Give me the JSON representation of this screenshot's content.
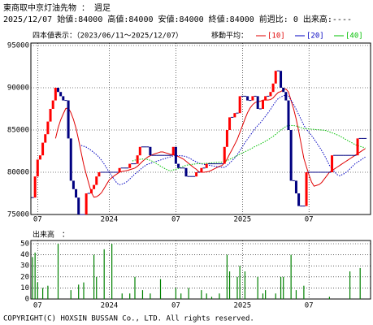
{
  "chart_data": {
    "type": "candlestick",
    "title": "東商取中京灯油先物 ： 週足",
    "summary": "2025/12/07 始値:84000 高値:84000 安値:84000 終値:84000 前週比: 0 出来高:----",
    "range_label": "四本値表示：（2023/06/11～2025/12/07）",
    "ma_label": "移動平均：",
    "ma": [
      {
        "name": "[10]",
        "period": 10,
        "color": "#e00000"
      },
      {
        "name": "[20]",
        "period": 20,
        "color": "#0000c0"
      },
      {
        "name": "[40]",
        "period": 40,
        "color": "#00c000"
      }
    ],
    "up_color": "#ff0000",
    "down_color": "#000080",
    "close": [
      77000,
      79500,
      81500,
      82000,
      83500,
      84500,
      86000,
      87500,
      88500,
      90000,
      89500,
      89000,
      88500,
      88500,
      84000,
      79000,
      78000,
      77000,
      75000,
      75000,
      75000,
      77500,
      77500,
      78000,
      78500,
      79500,
      80000,
      80000,
      80000,
      80000,
      80000,
      80000,
      80000,
      80000,
      80500,
      80500,
      80500,
      80500,
      81000,
      81000,
      81000,
      82000,
      83000,
      83000,
      83000,
      83000,
      82000,
      82000,
      82000,
      82000,
      82000,
      82000,
      82000,
      82000,
      82000,
      83000,
      81000,
      80500,
      80500,
      80500,
      79500,
      79500,
      79500,
      79500,
      80000,
      80000,
      80500,
      80500,
      81000,
      81000,
      81000,
      81000,
      81000,
      81000,
      81000,
      83000,
      85000,
      86500,
      86500,
      87000,
      87000,
      89000,
      89000,
      89000,
      88500,
      88500,
      89000,
      89000,
      87500,
      87500,
      88500,
      89000,
      89000,
      89500,
      90500,
      92000,
      92000,
      90000,
      89500,
      88500,
      85000,
      79000,
      79000,
      77500,
      76000,
      76000,
      76000,
      80000,
      80000,
      80000,
      80000,
      80000,
      80000,
      80000,
      80000,
      80000,
      80000,
      82000,
      82000,
      82000,
      82000,
      82000,
      82000,
      82000,
      82000,
      82000,
      82000,
      84000,
      84000,
      84000,
      84000
    ],
    "volume_label": "出来高　：",
    "volume": [
      38,
      42,
      15,
      0,
      10,
      0,
      12,
      0,
      0,
      0,
      50,
      0,
      0,
      0,
      0,
      8,
      0,
      0,
      13,
      0,
      15,
      0,
      0,
      0,
      40,
      20,
      0,
      0,
      45,
      0,
      0,
      50,
      0,
      0,
      0,
      5,
      0,
      0,
      5,
      0,
      20,
      0,
      0,
      8,
      0,
      0,
      5,
      0,
      0,
      0,
      18,
      0,
      0,
      0,
      0,
      0,
      10,
      0,
      5,
      0,
      0,
      10,
      0,
      0,
      0,
      0,
      8,
      0,
      5,
      0,
      2,
      0,
      0,
      5,
      0,
      0,
      40,
      25,
      0,
      0,
      20,
      30,
      0,
      25,
      0,
      0,
      0,
      0,
      20,
      0,
      5,
      8,
      0,
      0,
      0,
      5,
      0,
      20,
      20,
      0,
      0,
      40,
      0,
      8,
      0,
      0,
      12,
      0,
      0,
      0,
      0,
      0,
      0,
      0,
      0,
      0,
      2,
      0,
      0,
      0,
      0,
      0,
      0,
      0,
      25,
      0,
      0,
      0,
      28,
      0,
      0
    ],
    "ylim": [
      75000,
      95000
    ],
    "yticks": [
      75000,
      80000,
      85000,
      90000,
      95000
    ],
    "vlim": [
      0,
      50
    ],
    "vticks": [
      0,
      10,
      20,
      30,
      40,
      50
    ],
    "xticks": [
      {
        "value": 2,
        "label": "07"
      },
      {
        "value": 30,
        "label": "2024"
      },
      {
        "value": 56,
        "label": "07"
      },
      {
        "value": 82,
        "label": "2025"
      },
      {
        "value": 108,
        "label": "07"
      }
    ],
    "copyright": "COPYRIGHT(C) HOXSIN BUSSAN Co., LTD. All rights reserved."
  }
}
